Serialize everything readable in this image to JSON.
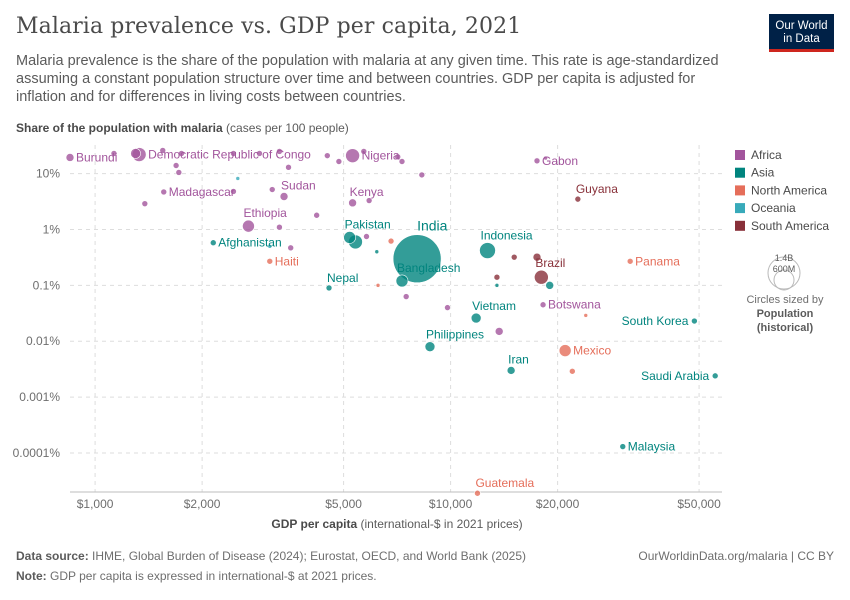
{
  "title": "Malaria prevalence vs. GDP per capita, 2021",
  "subtitle": "Malaria prevalence is the share of the population with malaria at any given time. This rate is age-standardized assuming a constant population structure over time and between countries. GDP per capita is adjusted for inflation and for differences in living costs between countries.",
  "logo": {
    "line1": "Our World",
    "line2": "in Data"
  },
  "y_axis_title": {
    "bold": "Share of the population with malaria",
    "rest": " (cases per 100 people)"
  },
  "x_axis_title": {
    "bold": "GDP per capita",
    "rest": " (international-$ in 2021 prices)"
  },
  "size_legend": {
    "big": "1.4B",
    "small": "600M",
    "caption1": "Circles sized by",
    "caption2": "Population",
    "caption3": "(historical)"
  },
  "footer": {
    "source_label": "Data source:",
    "source_text": " IHME, Global Burden of Disease (2024); Eurostat, OECD, and World Bank (2025)",
    "note_label": "Note:",
    "note_text": " GDP per capita is expressed in international-$ at 2021 prices.",
    "url": "OurWorldinData.org/malaria | CC BY"
  },
  "colors": {
    "Africa": "#a2559c",
    "Asia": "#00847e",
    "North America": "#e56e5a",
    "Oceania": "#38aaba",
    "South America": "#883039"
  },
  "chart_data": {
    "type": "scatter",
    "x_scale": "log",
    "y_scale": "log",
    "xlim": [
      850,
      58000
    ],
    "ylim": [
      2e-05,
      30
    ],
    "x_ticks": [
      {
        "value": 1000,
        "label": "$1,000"
      },
      {
        "value": 2000,
        "label": "$2,000"
      },
      {
        "value": 5000,
        "label": "$5,000"
      },
      {
        "value": 10000,
        "label": "$10,000"
      },
      {
        "value": 20000,
        "label": "$20,000"
      },
      {
        "value": 50000,
        "label": "$50,000"
      }
    ],
    "y_ticks": [
      {
        "value": 10,
        "label": "10%"
      },
      {
        "value": 1,
        "label": "1%"
      },
      {
        "value": 0.1,
        "label": "0.1%"
      },
      {
        "value": 0.01,
        "label": "0.01%"
      },
      {
        "value": 0.001,
        "label": "0.001%"
      },
      {
        "value": 0.0001,
        "label": "0.0001%"
      }
    ],
    "legend": [
      "Africa",
      "Asia",
      "North America",
      "Oceania",
      "South America"
    ],
    "points": [
      {
        "label": "Burundi",
        "region": "Africa",
        "x": 850,
        "y": 19.5,
        "size": 4,
        "label_pos": "right"
      },
      {
        "label": "",
        "region": "Africa",
        "x": 1130,
        "y": 23,
        "size": 3
      },
      {
        "label": "",
        "region": "Africa",
        "x": 1300,
        "y": 23,
        "size": 5
      },
      {
        "label": "Democratic Republic of Congo",
        "region": "Africa",
        "x": 1330,
        "y": 22,
        "size": 7,
        "label_pos": "right"
      },
      {
        "label": "",
        "region": "Africa",
        "x": 1550,
        "y": 26,
        "size": 3
      },
      {
        "label": "",
        "region": "Africa",
        "x": 1750,
        "y": 23,
        "size": 3
      },
      {
        "label": "",
        "region": "Africa",
        "x": 1690,
        "y": 14,
        "size": 3
      },
      {
        "label": "",
        "region": "Africa",
        "x": 1720,
        "y": 10.5,
        "size": 3
      },
      {
        "label": "",
        "region": "Africa",
        "x": 2450,
        "y": 23,
        "size": 3
      },
      {
        "label": "",
        "region": "Africa",
        "x": 2900,
        "y": 23,
        "size": 3
      },
      {
        "label": "",
        "region": "Africa",
        "x": 3300,
        "y": 25,
        "size": 3
      },
      {
        "label": "",
        "region": "Africa",
        "x": 3500,
        "y": 13,
        "size": 3
      },
      {
        "label": "",
        "region": "Africa",
        "x": 3150,
        "y": 5.2,
        "size": 3
      },
      {
        "label": "",
        "region": "Africa",
        "x": 4500,
        "y": 21,
        "size": 3
      },
      {
        "label": "",
        "region": "Africa",
        "x": 4850,
        "y": 16.5,
        "size": 3
      },
      {
        "label": "Nigeria",
        "region": "Africa",
        "x": 5300,
        "y": 21,
        "size": 7,
        "label_pos": "right"
      },
      {
        "label": "",
        "region": "Africa",
        "x": 5700,
        "y": 25,
        "size": 3
      },
      {
        "label": "",
        "region": "Africa",
        "x": 7100,
        "y": 20,
        "size": 3
      },
      {
        "label": "",
        "region": "Africa",
        "x": 7300,
        "y": 16.5,
        "size": 3
      },
      {
        "label": "",
        "region": "Africa",
        "x": 8300,
        "y": 9.5,
        "size": 3
      },
      {
        "label": "Gabon",
        "region": "Africa",
        "x": 17500,
        "y": 17,
        "size": 3,
        "label_pos": "right"
      },
      {
        "label": "",
        "region": "Africa",
        "x": 18500,
        "y": 19,
        "size": 2
      },
      {
        "label": "Madagascar",
        "region": "Africa",
        "x": 1560,
        "y": 4.7,
        "size": 3,
        "label_pos": "right"
      },
      {
        "label": "",
        "region": "Africa",
        "x": 1380,
        "y": 2.9,
        "size": 3
      },
      {
        "label": "",
        "region": "Africa",
        "x": 2450,
        "y": 4.8,
        "size": 3
      },
      {
        "label": "Sudan",
        "region": "Africa",
        "x": 3400,
        "y": 3.9,
        "size": 4,
        "label_pos": "above"
      },
      {
        "label": "Kenya",
        "region": "Africa",
        "x": 5300,
        "y": 3.0,
        "size": 4,
        "label_pos": "above"
      },
      {
        "label": "",
        "region": "Africa",
        "x": 5900,
        "y": 3.3,
        "size": 3
      },
      {
        "label": "",
        "region": "Africa",
        "x": 4200,
        "y": 1.8,
        "size": 3
      },
      {
        "label": "Ethiopia",
        "region": "Africa",
        "x": 2700,
        "y": 1.15,
        "size": 6,
        "label_pos": "above"
      },
      {
        "label": "",
        "region": "Africa",
        "x": 3300,
        "y": 1.1,
        "size": 3
      },
      {
        "label": "",
        "region": "Africa",
        "x": 3550,
        "y": 0.47,
        "size": 3
      },
      {
        "label": "",
        "region": "Africa",
        "x": 5800,
        "y": 0.75,
        "size": 3
      },
      {
        "label": "",
        "region": "Africa",
        "x": 7500,
        "y": 0.063,
        "size": 3
      },
      {
        "label": "",
        "region": "Africa",
        "x": 9800,
        "y": 0.04,
        "size": 3
      },
      {
        "label": "",
        "region": "Africa",
        "x": 13700,
        "y": 0.015,
        "size": 4
      },
      {
        "label": "Botswana",
        "region": "Africa",
        "x": 18200,
        "y": 0.045,
        "size": 3,
        "label_pos": "right"
      },
      {
        "label": "Pakistan",
        "region": "Asia",
        "x": 5200,
        "y": 0.72,
        "size": 6,
        "label_pos": "above"
      },
      {
        "label": "",
        "region": "Asia",
        "x": 5400,
        "y": 0.6,
        "size": 7
      },
      {
        "label": "Afghanistan",
        "region": "Asia",
        "x": 2150,
        "y": 0.58,
        "size": 3,
        "label_pos": "right"
      },
      {
        "label": "India",
        "region": "Asia",
        "x": 8050,
        "y": 0.3,
        "size": 24,
        "label_pos": "above"
      },
      {
        "label": "Indonesia",
        "region": "Asia",
        "x": 12700,
        "y": 0.42,
        "size": 8,
        "label_pos": "above"
      },
      {
        "label": "Bangladesh",
        "region": "Asia",
        "x": 7300,
        "y": 0.12,
        "size": 6,
        "label_pos": "above"
      },
      {
        "label": "Nepal",
        "region": "Asia",
        "x": 4550,
        "y": 0.09,
        "size": 3,
        "label_pos": "above"
      },
      {
        "label": "",
        "region": "Asia",
        "x": 6200,
        "y": 0.4,
        "size": 2
      },
      {
        "label": "",
        "region": "Asia",
        "x": 13500,
        "y": 0.1,
        "size": 2
      },
      {
        "label": "",
        "region": "Asia",
        "x": 19000,
        "y": 0.1,
        "size": 4
      },
      {
        "label": "Vietnam",
        "region": "Asia",
        "x": 11800,
        "y": 0.026,
        "size": 5,
        "label_pos": "above"
      },
      {
        "label": "Philippines",
        "region": "Asia",
        "x": 8750,
        "y": 0.008,
        "size": 5,
        "label_pos": "above"
      },
      {
        "label": "Iran",
        "region": "Asia",
        "x": 14800,
        "y": 0.003,
        "size": 4,
        "label_pos": "above"
      },
      {
        "label": "South Korea",
        "region": "Asia",
        "x": 48500,
        "y": 0.023,
        "size": 3,
        "label_pos": "left"
      },
      {
        "label": "Saudi Arabia",
        "region": "Asia",
        "x": 55500,
        "y": 0.0024,
        "size": 3,
        "label_pos": "left"
      },
      {
        "label": "Malaysia",
        "region": "Asia",
        "x": 30500,
        "y": 0.00013,
        "size": 3,
        "label_pos": "right"
      },
      {
        "label": "Haiti",
        "region": "North America",
        "x": 3100,
        "y": 0.27,
        "size": 3,
        "label_pos": "right"
      },
      {
        "label": "",
        "region": "North America",
        "x": 6250,
        "y": 0.1,
        "size": 2
      },
      {
        "label": "",
        "region": "North America",
        "x": 6800,
        "y": 0.62,
        "size": 3
      },
      {
        "label": "Panama",
        "region": "North America",
        "x": 32000,
        "y": 0.27,
        "size": 3,
        "label_pos": "right"
      },
      {
        "label": "Mexico",
        "region": "North America",
        "x": 21000,
        "y": 0.0068,
        "size": 6,
        "label_pos": "right"
      },
      {
        "label": "",
        "region": "North America",
        "x": 22000,
        "y": 0.0029,
        "size": 3
      },
      {
        "label": "",
        "region": "North America",
        "x": 24000,
        "y": 0.029,
        "size": 2
      },
      {
        "label": "Guatemala",
        "region": "North America",
        "x": 11900,
        "y": 1.9e-05,
        "size": 3,
        "label_pos": "above"
      },
      {
        "label": "",
        "region": "Oceania",
        "x": 2520,
        "y": 8.2,
        "size": 2
      },
      {
        "label": "",
        "region": "Oceania",
        "x": 3100,
        "y": 0.5,
        "size": 2
      },
      {
        "label": "Guyana",
        "region": "South America",
        "x": 22800,
        "y": 3.5,
        "size": 3,
        "label_pos": "above"
      },
      {
        "label": "Brazil",
        "region": "South America",
        "x": 18000,
        "y": 0.14,
        "size": 7,
        "label_pos": "above"
      },
      {
        "label": "",
        "region": "South America",
        "x": 17500,
        "y": 0.32,
        "size": 4
      },
      {
        "label": "",
        "region": "South America",
        "x": 15100,
        "y": 0.32,
        "size": 3
      },
      {
        "label": "",
        "region": "South America",
        "x": 13500,
        "y": 0.14,
        "size": 3
      }
    ]
  }
}
